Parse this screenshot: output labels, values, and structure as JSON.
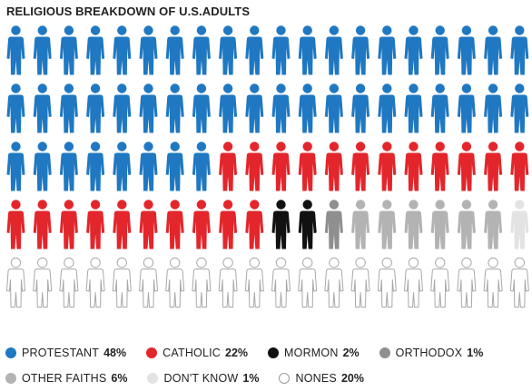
{
  "title": "RELIGIOUS BREAKDOWN OF U.S.ADULTS",
  "chart_data": {
    "type": "pictogram",
    "title": "RELIGIOUS BREAKDOWN OF U.S.ADULTS",
    "total_icons": 100,
    "rows": 5,
    "columns": 20,
    "series": [
      {
        "name": "PROTESTANT",
        "value": 48,
        "label": "48%",
        "color": "#1f78c1",
        "outline": false
      },
      {
        "name": "CATHOLIC",
        "value": 22,
        "label": "22%",
        "color": "#e3262b",
        "outline": false
      },
      {
        "name": "MORMON",
        "value": 2,
        "label": "2%",
        "color": "#111111",
        "outline": false
      },
      {
        "name": "ORTHODOX",
        "value": 1,
        "label": "1%",
        "color": "#8f8f8f",
        "outline": false
      },
      {
        "name": "OTHER FAITHS",
        "value": 6,
        "label": "6%",
        "color": "#b3b3b3",
        "outline": false
      },
      {
        "name": "DON'T KNOW",
        "value": 1,
        "label": "1%",
        "color": "#e3e3e3",
        "outline": false
      },
      {
        "name": "NONES",
        "value": 20,
        "label": "20%",
        "color": "#ffffff",
        "outline": true
      }
    ],
    "legend_order": [
      "PROTESTANT",
      "CATHOLIC",
      "MORMON",
      "ORTHODOX",
      "OTHER FAITHS",
      "DON'T KNOW",
      "NONES"
    ]
  }
}
